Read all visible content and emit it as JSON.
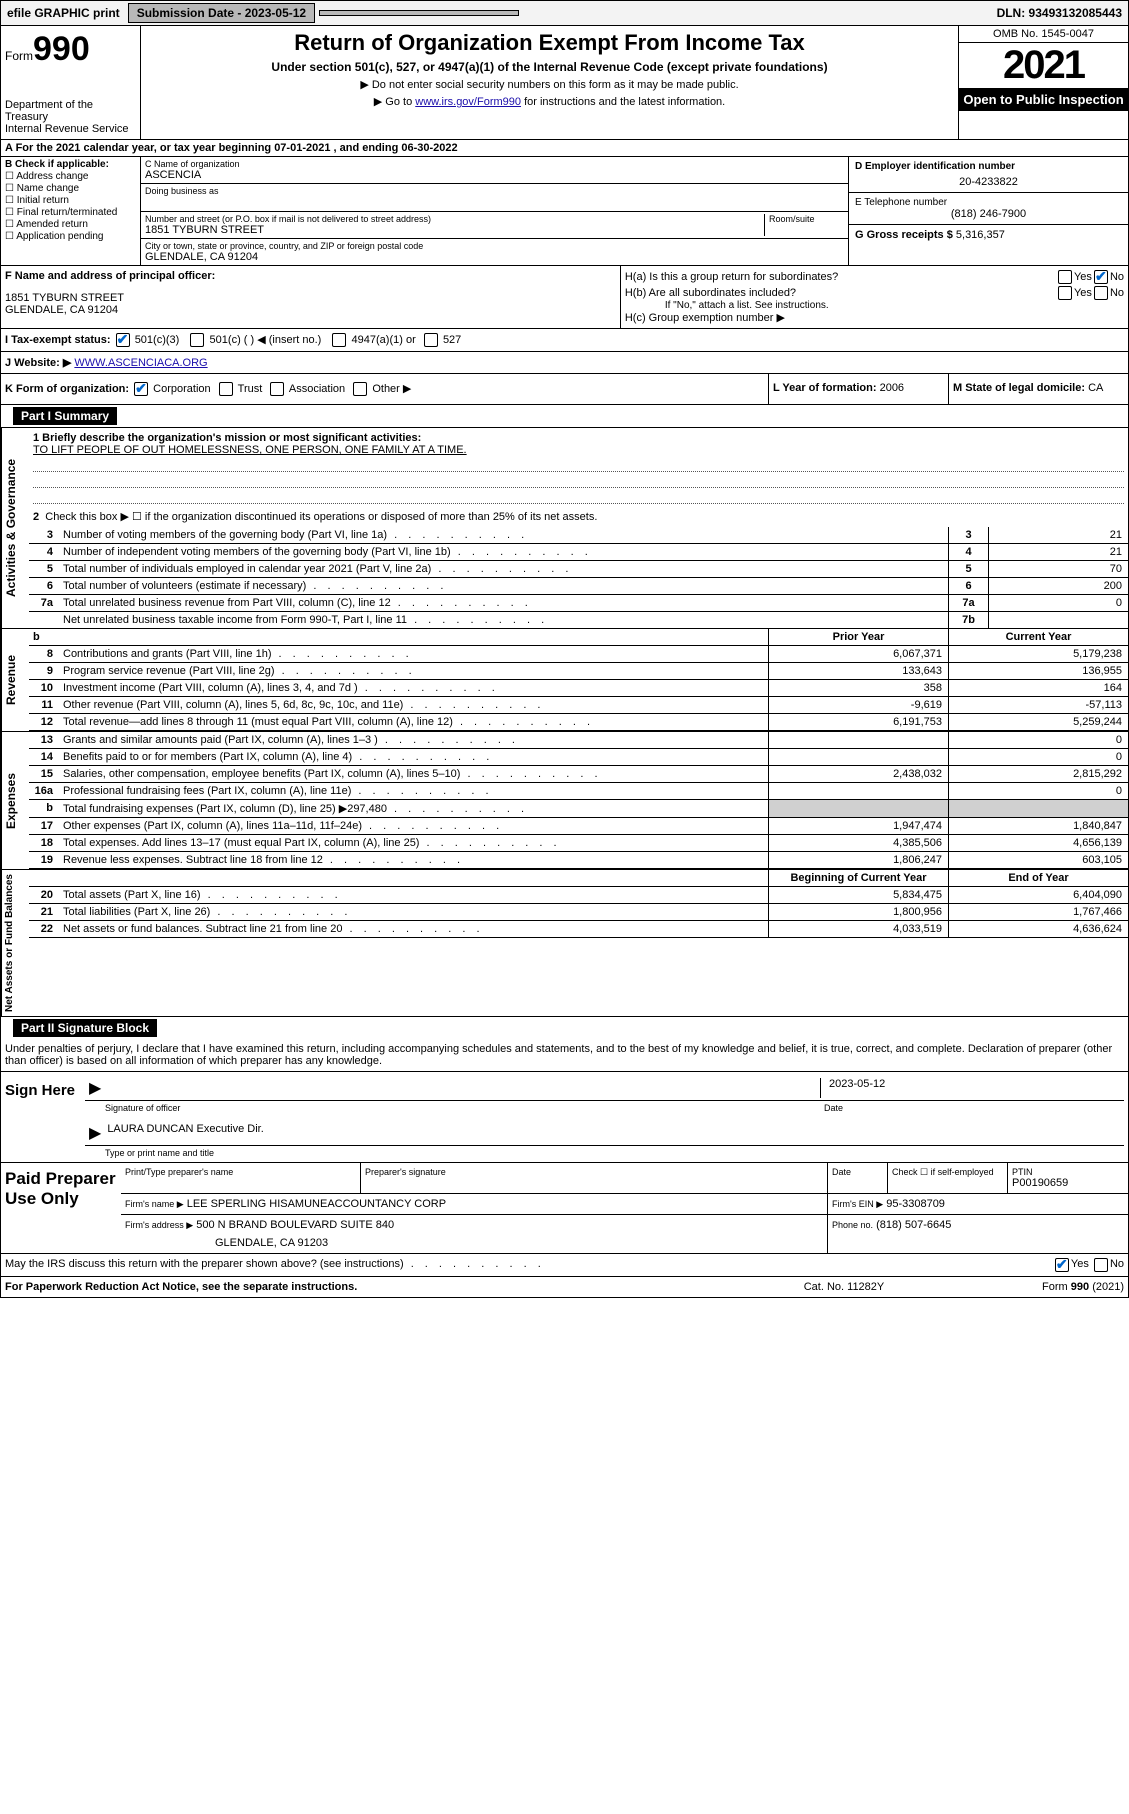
{
  "topbar": {
    "efile": "efile GRAPHIC print",
    "submission_label": "Submission Date - 2023-05-12",
    "dln": "DLN: 93493132085443"
  },
  "header": {
    "form_prefix": "Form",
    "form_number": "990",
    "dept": "Department of the Treasury",
    "irs": "Internal Revenue Service",
    "title": "Return of Organization Exempt From Income Tax",
    "subtitle": "Under section 501(c), 527, or 4947(a)(1) of the Internal Revenue Code (except private foundations)",
    "note1": "▶ Do not enter social security numbers on this form as it may be made public.",
    "note2_pre": "▶ Go to ",
    "note2_link": "www.irs.gov/Form990",
    "note2_post": " for instructions and the latest information.",
    "omb": "OMB No. 1545-0047",
    "year": "2021",
    "open": "Open to Public Inspection"
  },
  "section_a": "A For the 2021 calendar year, or tax year beginning 07-01-2021   , and ending 06-30-2022",
  "section_b": {
    "label": "B Check if applicable:",
    "items": [
      "Address change",
      "Name change",
      "Initial return",
      "Final return/terminated",
      "Amended return",
      "Application pending"
    ]
  },
  "section_c": {
    "name_label": "C Name of organization",
    "name": "ASCENCIA",
    "dba_label": "Doing business as",
    "addr_label": "Number and street (or P.O. box if mail is not delivered to street address)",
    "room_label": "Room/suite",
    "addr": "1851 TYBURN STREET",
    "city_label": "City or town, state or province, country, and ZIP or foreign postal code",
    "city": "GLENDALE, CA  91204"
  },
  "section_d": {
    "label": "D Employer identification number",
    "val": "20-4233822"
  },
  "section_e": {
    "label": "E Telephone number",
    "val": "(818) 246-7900"
  },
  "section_g": {
    "label": "G Gross receipts $",
    "val": "5,316,357"
  },
  "section_f": {
    "label": "F Name and address of principal officer:",
    "addr1": "1851 TYBURN STREET",
    "addr2": "GLENDALE, CA  91204"
  },
  "section_h": {
    "ha": "H(a)  Is this a group return for subordinates?",
    "hb": "H(b)  Are all subordinates included?",
    "hb_note": "If \"No,\" attach a list. See instructions.",
    "hc": "H(c)  Group exemption number ▶",
    "yes": "Yes",
    "no": "No"
  },
  "section_i": {
    "label": "I   Tax-exempt status:",
    "opts": [
      "501(c)(3)",
      "501(c) (  ) ◀ (insert no.)",
      "4947(a)(1) or",
      "527"
    ]
  },
  "section_j": {
    "label": "J   Website: ▶",
    "val": "WWW.ASCENCIACA.ORG"
  },
  "section_k": {
    "label": "K Form of organization:",
    "opts": [
      "Corporation",
      "Trust",
      "Association",
      "Other ▶"
    ]
  },
  "section_l": {
    "label": "L Year of formation:",
    "val": "2006"
  },
  "section_m": {
    "label": "M State of legal domicile:",
    "val": "CA"
  },
  "part1": {
    "title": "Part I     Summary",
    "q1_label": "1  Briefly describe the organization's mission or most significant activities:",
    "q1_val": "TO LIFT PEOPLE OF OUT HOMELESSNESS, ONE PERSON, ONE FAMILY AT A TIME.",
    "q2": "Check this box ▶ ☐  if the organization discontinued its operations or disposed of more than 25% of its net assets.",
    "rows_ag": [
      {
        "n": "3",
        "t": "Number of voting members of the governing body (Part VI, line 1a)",
        "box": "3",
        "val": "21"
      },
      {
        "n": "4",
        "t": "Number of independent voting members of the governing body (Part VI, line 1b)",
        "box": "4",
        "val": "21"
      },
      {
        "n": "5",
        "t": "Total number of individuals employed in calendar year 2021 (Part V, line 2a)",
        "box": "5",
        "val": "70"
      },
      {
        "n": "6",
        "t": "Total number of volunteers (estimate if necessary)",
        "box": "6",
        "val": "200"
      },
      {
        "n": "7a",
        "t": "Total unrelated business revenue from Part VIII, column (C), line 12",
        "box": "7a",
        "val": "0"
      },
      {
        "n": "",
        "t": "Net unrelated business taxable income from Form 990-T, Part I, line 11",
        "box": "7b",
        "val": ""
      }
    ],
    "col_headers": {
      "prior": "Prior Year",
      "current": "Current Year",
      "boy": "Beginning of Current Year",
      "eoy": "End of Year"
    },
    "revenue": [
      {
        "n": "8",
        "t": "Contributions and grants (Part VIII, line 1h)",
        "c1": "6,067,371",
        "c2": "5,179,238"
      },
      {
        "n": "9",
        "t": "Program service revenue (Part VIII, line 2g)",
        "c1": "133,643",
        "c2": "136,955"
      },
      {
        "n": "10",
        "t": "Investment income (Part VIII, column (A), lines 3, 4, and 7d )",
        "c1": "358",
        "c2": "164"
      },
      {
        "n": "11",
        "t": "Other revenue (Part VIII, column (A), lines 5, 6d, 8c, 9c, 10c, and 11e)",
        "c1": "-9,619",
        "c2": "-57,113"
      },
      {
        "n": "12",
        "t": "Total revenue—add lines 8 through 11 (must equal Part VIII, column (A), line 12)",
        "c1": "6,191,753",
        "c2": "5,259,244"
      }
    ],
    "expenses": [
      {
        "n": "13",
        "t": "Grants and similar amounts paid (Part IX, column (A), lines 1–3 )",
        "c1": "",
        "c2": "0"
      },
      {
        "n": "14",
        "t": "Benefits paid to or for members (Part IX, column (A), line 4)",
        "c1": "",
        "c2": "0"
      },
      {
        "n": "15",
        "t": "Salaries, other compensation, employee benefits (Part IX, column (A), lines 5–10)",
        "c1": "2,438,032",
        "c2": "2,815,292"
      },
      {
        "n": "16a",
        "t": "Professional fundraising fees (Part IX, column (A), line 11e)",
        "c1": "",
        "c2": "0"
      },
      {
        "n": "b",
        "t": "Total fundraising expenses (Part IX, column (D), line 25) ▶297,480",
        "c1": "shaded",
        "c2": "shaded"
      },
      {
        "n": "17",
        "t": "Other expenses (Part IX, column (A), lines 11a–11d, 11f–24e)",
        "c1": "1,947,474",
        "c2": "1,840,847"
      },
      {
        "n": "18",
        "t": "Total expenses. Add lines 13–17 (must equal Part IX, column (A), line 25)",
        "c1": "4,385,506",
        "c2": "4,656,139"
      },
      {
        "n": "19",
        "t": "Revenue less expenses. Subtract line 18 from line 12",
        "c1": "1,806,247",
        "c2": "603,105"
      }
    ],
    "netassets": [
      {
        "n": "20",
        "t": "Total assets (Part X, line 16)",
        "c1": "5,834,475",
        "c2": "6,404,090"
      },
      {
        "n": "21",
        "t": "Total liabilities (Part X, line 26)",
        "c1": "1,800,956",
        "c2": "1,767,466"
      },
      {
        "n": "22",
        "t": "Net assets or fund balances. Subtract line 21 from line 20",
        "c1": "4,033,519",
        "c2": "4,636,624"
      }
    ],
    "side_labels": {
      "ag": "Activities & Governance",
      "rev": "Revenue",
      "exp": "Expenses",
      "na": "Net Assets or Fund Balances"
    }
  },
  "part2": {
    "title": "Part II     Signature Block",
    "declare": "Under penalties of perjury, I declare that I have examined this return, including accompanying schedules and statements, and to the best of my knowledge and belief, it is true, correct, and complete. Declaration of preparer (other than officer) is based on all information of which preparer has any knowledge.",
    "sign_here": "Sign Here",
    "sig_officer": "Signature of officer",
    "date_label": "Date",
    "date_val": "2023-05-12",
    "name_title": "LAURA DUNCAN  Executive Dir.",
    "name_title_label": "Type or print name and title",
    "paid_label": "Paid Preparer Use Only",
    "p_name_label": "Print/Type preparer's name",
    "p_sig_label": "Preparer's signature",
    "p_date_label": "Date",
    "p_check": "Check ☐ if self-employed",
    "ptin_label": "PTIN",
    "ptin": "P00190659",
    "firm_name_label": "Firm's name    ▶",
    "firm_name": "LEE SPERLING HISAMUNEACCOUNTANCY CORP",
    "firm_ein_label": "Firm's EIN ▶",
    "firm_ein": "95-3308709",
    "firm_addr_label": "Firm's address ▶",
    "firm_addr1": "500 N BRAND BOULEVARD SUITE 840",
    "firm_addr2": "GLENDALE, CA  91203",
    "phone_label": "Phone no.",
    "phone": "(818) 507-6645",
    "may_irs": "May the IRS discuss this return with the preparer shown above? (see instructions)",
    "yes": "Yes",
    "no": "No"
  },
  "footer": {
    "left": "For Paperwork Reduction Act Notice, see the separate instructions.",
    "mid": "Cat. No. 11282Y",
    "right": "Form 990 (2021)"
  }
}
